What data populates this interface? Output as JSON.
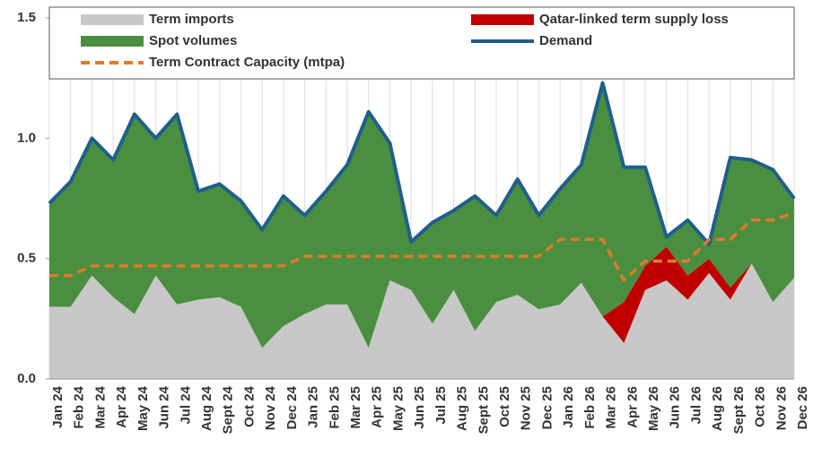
{
  "chart_data": {
    "type": "area",
    "categories": [
      "Jan 24",
      "Feb 24",
      "Mar 24",
      "Apr 24",
      "May 24",
      "Jun 24",
      "Jul 24",
      "Aug 24",
      "Sept 24",
      "Oct 24",
      "Nov 24",
      "Dec 24",
      "Jan 25",
      "Feb 25",
      "Mar 25",
      "Apr 25",
      "May 25",
      "Jun 25",
      "Jul 25",
      "Aug 25",
      "Sept 25",
      "Oct 25",
      "Nov 25",
      "Dec 25",
      "Jan 26",
      "Feb 26",
      "Mar 26",
      "Apr 26",
      "May 26",
      "Jun 26",
      "Jul 26",
      "Aug 26",
      "Sept 26",
      "Oct 26",
      "Nov 26",
      "Dec 26"
    ],
    "series": [
      {
        "name": "Term imports",
        "kind": "area",
        "color": "#c8c8c8",
        "values": [
          0.3,
          0.3,
          0.43,
          0.34,
          0.27,
          0.43,
          0.31,
          0.33,
          0.34,
          0.3,
          0.13,
          0.22,
          0.27,
          0.31,
          0.31,
          0.13,
          0.41,
          0.37,
          0.23,
          0.37,
          0.2,
          0.32,
          0.35,
          0.29,
          0.31,
          0.4,
          0.26,
          0.15,
          0.37,
          0.41,
          0.33,
          0.44,
          0.33,
          0.48,
          0.32,
          0.42
        ]
      },
      {
        "name": "Qatar-linked term supply loss",
        "kind": "area",
        "color": "#c00000",
        "values": [
          0,
          0,
          0,
          0,
          0,
          0,
          0,
          0,
          0,
          0,
          0,
          0,
          0,
          0,
          0,
          0,
          0,
          0,
          0,
          0,
          0,
          0,
          0,
          0,
          0,
          0,
          0,
          0.17,
          0.1,
          0.14,
          0.1,
          0.06,
          0.05,
          0,
          0,
          0
        ]
      },
      {
        "name": "Spot volumes",
        "kind": "area",
        "color": "#4a8f3f",
        "values": [
          0.43,
          0.52,
          0.57,
          0.57,
          0.83,
          0.57,
          0.79,
          0.45,
          0.47,
          0.44,
          0.49,
          0.54,
          0.41,
          0.47,
          0.58,
          0.98,
          0.57,
          0.2,
          0.42,
          0.33,
          0.56,
          0.36,
          0.48,
          0.39,
          0.48,
          0.49,
          0.97,
          0.56,
          0.41,
          0.04,
          0.23,
          0.06,
          0.54,
          0.43,
          0.55,
          0.33
        ]
      },
      {
        "name": "Demand",
        "kind": "line",
        "color": "#1f5f8b",
        "values": [
          0.73,
          0.82,
          1.0,
          0.91,
          1.1,
          1.0,
          1.1,
          0.78,
          0.81,
          0.74,
          0.62,
          0.76,
          0.68,
          0.78,
          0.89,
          1.11,
          0.98,
          0.57,
          0.65,
          0.7,
          0.76,
          0.68,
          0.83,
          0.68,
          0.79,
          0.89,
          1.23,
          0.88,
          0.88,
          0.59,
          0.66,
          0.56,
          0.92,
          0.91,
          0.87,
          0.75
        ]
      },
      {
        "name": "Term Contract Capacity (mtpa)",
        "kind": "line",
        "dashed": true,
        "color": "#e07b2a",
        "values": [
          0.43,
          0.43,
          0.47,
          0.47,
          0.47,
          0.47,
          0.47,
          0.47,
          0.47,
          0.47,
          0.47,
          0.47,
          0.51,
          0.51,
          0.51,
          0.51,
          0.51,
          0.51,
          0.51,
          0.51,
          0.51,
          0.51,
          0.51,
          0.51,
          0.58,
          0.58,
          0.58,
          0.41,
          0.49,
          0.49,
          0.49,
          0.58,
          0.58,
          0.66,
          0.66,
          0.69
        ]
      }
    ],
    "ylim": [
      0,
      1.5
    ],
    "yticks": [
      {
        "value": 0,
        "label": "0.0"
      },
      0.5,
      {
        "value": 1,
        "label": "1.0"
      },
      1.5
    ],
    "grid": true
  }
}
